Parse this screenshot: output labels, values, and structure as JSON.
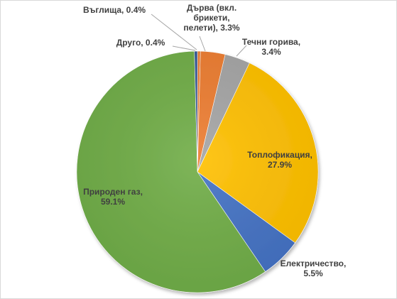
{
  "chart_data": {
    "type": "pie",
    "title": "",
    "start_angle_deg": 0,
    "direction": "clockwise",
    "legend": "none",
    "slices": [
      {
        "label_lines": [
          "Въглища, 0.4%"
        ],
        "name": "Въглища",
        "value": 0.4,
        "display": "0.4%",
        "color": "#ed7d31",
        "label_color": "#404040"
      },
      {
        "label_lines": [
          "Дърва (вкл.",
          "брикети,",
          "пелети), 3.3%"
        ],
        "name": "Дърва (вкл. брикети, пелети)",
        "value": 3.3,
        "display": "3.3%",
        "color": "#ed7d31",
        "label_color": "#404040"
      },
      {
        "label_lines": [
          "Течни горива,",
          "3.4%"
        ],
        "name": "Течни горива",
        "value": 3.4,
        "display": "3.4%",
        "color": "#a5a5a5",
        "label_color": "#404040"
      },
      {
        "label_lines": [
          "Топлофикация,",
          "27.9%"
        ],
        "name": "Топлофикация",
        "value": 27.9,
        "display": "27.9%",
        "color": "#ffc000",
        "label_color": "#404040"
      },
      {
        "label_lines": [
          "Електричество,",
          "5.5%"
        ],
        "name": "Електричество",
        "value": 5.5,
        "display": "5.5%",
        "color": "#4472c4",
        "label_color": "#404040"
      },
      {
        "label_lines": [
          "Природен газ,",
          "59.1%"
        ],
        "name": "Природен газ",
        "value": 59.1,
        "display": "59.1%",
        "color": "#70ad47",
        "label_color": "#404040"
      },
      {
        "label_lines": [
          "Друго, 0.4%"
        ],
        "name": "Друго",
        "value": 0.4,
        "display": "0.4%",
        "color": "#2f5597",
        "label_color": "#404040"
      }
    ]
  }
}
